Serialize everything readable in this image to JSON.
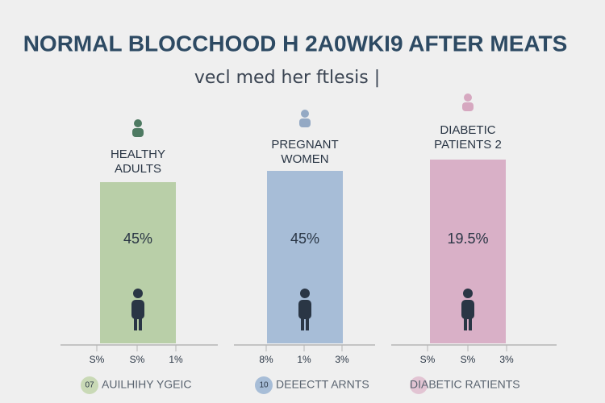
{
  "header": {
    "title": "NORMAL BLOCCHOOD H 2A0WKI9 AFTER MEATS",
    "subtitle": "vecl med her ftlesis |"
  },
  "panels": [
    {
      "label": [
        "HEALTHY",
        "ADULTS"
      ],
      "value": "45%",
      "axis_labels": [
        "S%",
        "S%",
        "1%"
      ],
      "legend": {
        "badge": "07",
        "text": "AUILHIHY YGEIC"
      }
    },
    {
      "label": [
        "PREGNANT",
        "WOMEN"
      ],
      "value": "45%",
      "axis_labels": [
        "8%",
        "1%",
        "3%"
      ],
      "legend": {
        "badge": "10",
        "text": "DEEECTT ARNTS"
      }
    },
    {
      "label": [
        "DIABETIC",
        "PATIENTS 2"
      ],
      "value": "19.5%",
      "axis_labels": [
        "S%",
        "S%",
        "3%"
      ],
      "legend": {
        "text": "DIABETIC RATIENTS"
      }
    }
  ]
}
